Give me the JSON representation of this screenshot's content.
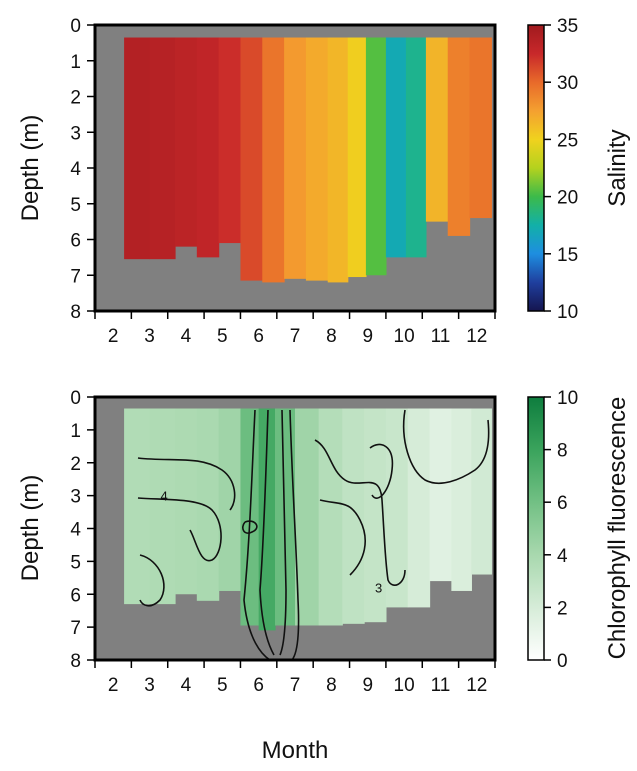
{
  "chart_data": [
    {
      "type": "heatmap",
      "panel": "top",
      "xlabel": "",
      "ylabel": "Depth (m)",
      "colorbar_label": "Salinity",
      "x_ticks": [
        "2",
        "3",
        "4",
        "5",
        "6",
        "7",
        "8",
        "9",
        "10",
        "11",
        "12"
      ],
      "y_ticks": [
        "0",
        "1",
        "2",
        "3",
        "4",
        "5",
        "6",
        "7",
        "8"
      ],
      "x_range": [
        1.5,
        12.5
      ],
      "y_range": [
        0,
        8
      ],
      "y_reversed": true,
      "colorbar_ticks": [
        "10",
        "15",
        "20",
        "25",
        "30",
        "35"
      ],
      "colorbar_range": [
        10,
        35
      ],
      "colormap": [
        "#15154f",
        "#1f3f9e",
        "#1e8ee0",
        "#12b0a8",
        "#3cba4a",
        "#b4d21e",
        "#f0d21e",
        "#f4a030",
        "#e86a2a",
        "#c8282a",
        "#a01a1e"
      ],
      "no_data_color": "#808080",
      "columns": [
        {
          "month": 2.6,
          "salinity": 33.8,
          "max_depth": 6.55
        },
        {
          "month": 3.4,
          "salinity": 33.6,
          "max_depth": 6.55
        },
        {
          "month": 4.0,
          "salinity": 33.3,
          "max_depth": 6.2
        },
        {
          "month": 4.6,
          "salinity": 33.0,
          "max_depth": 6.5
        },
        {
          "month": 5.2,
          "salinity": 32.3,
          "max_depth": 6.1
        },
        {
          "month": 5.8,
          "salinity": 31.2,
          "max_depth": 7.15
        },
        {
          "month": 6.4,
          "salinity": 29.5,
          "max_depth": 7.2
        },
        {
          "month": 7.0,
          "salinity": 27.8,
          "max_depth": 7.1
        },
        {
          "month": 7.6,
          "salinity": 27.0,
          "max_depth": 7.15
        },
        {
          "month": 8.2,
          "salinity": 26.4,
          "max_depth": 7.2
        },
        {
          "month": 8.7,
          "salinity": 25.2,
          "max_depth": 7.05
        },
        {
          "month": 9.2,
          "salinity": 20.5,
          "max_depth": 7.0
        },
        {
          "month": 9.8,
          "salinity": 17.0,
          "max_depth": 6.5
        },
        {
          "month": 10.3,
          "salinity": 18.2,
          "max_depth": 6.5
        },
        {
          "month": 10.9,
          "salinity": 26.5,
          "max_depth": 5.5
        },
        {
          "month": 11.5,
          "salinity": 29.0,
          "max_depth": 5.9
        },
        {
          "month": 12.1,
          "salinity": 29.5,
          "max_depth": 5.4
        }
      ]
    },
    {
      "type": "heatmap",
      "panel": "bottom",
      "xlabel": "Month",
      "ylabel": "Depth (m)",
      "colorbar_label": "Chlorophyll fluorescence",
      "x_ticks": [
        "2",
        "3",
        "4",
        "5",
        "6",
        "7",
        "8",
        "9",
        "10",
        "11",
        "12"
      ],
      "y_ticks": [
        "0",
        "1",
        "2",
        "3",
        "4",
        "5",
        "6",
        "7",
        "8"
      ],
      "x_range": [
        1.5,
        12.5
      ],
      "y_range": [
        0,
        8
      ],
      "y_reversed": true,
      "colorbar_ticks": [
        "0",
        "2",
        "4",
        "6",
        "8",
        "10"
      ],
      "colorbar_range": [
        0,
        10
      ],
      "colormap": [
        "#ffffff",
        "#d6ecd8",
        "#a8d8ae",
        "#72c084",
        "#3aa35c",
        "#0e7d3e"
      ],
      "no_data_color": "#808080",
      "contour_labels": [
        {
          "text": "4",
          "month": 3.4,
          "depth": 3.0
        },
        {
          "text": "3",
          "month": 9.3,
          "depth": 5.8
        }
      ],
      "columns": [
        {
          "month": 2.6,
          "chl": 3.6,
          "max_depth": 6.3
        },
        {
          "month": 3.4,
          "chl": 3.7,
          "max_depth": 6.3
        },
        {
          "month": 4.0,
          "chl": 3.8,
          "max_depth": 6.0
        },
        {
          "month": 4.6,
          "chl": 3.9,
          "max_depth": 6.2
        },
        {
          "month": 5.2,
          "chl": 4.3,
          "max_depth": 5.9
        },
        {
          "month": 5.8,
          "chl": 6.2,
          "max_depth": 6.95
        },
        {
          "month": 6.2,
          "chl": 7.6,
          "max_depth": 7.1
        },
        {
          "month": 6.7,
          "chl": 6.2,
          "max_depth": 6.95
        },
        {
          "month": 7.3,
          "chl": 4.3,
          "max_depth": 6.95
        },
        {
          "month": 8.0,
          "chl": 3.5,
          "max_depth": 6.95
        },
        {
          "month": 8.6,
          "chl": 3.0,
          "max_depth": 6.9
        },
        {
          "month": 9.2,
          "chl": 2.8,
          "max_depth": 6.85
        },
        {
          "month": 9.8,
          "chl": 2.6,
          "max_depth": 6.4
        },
        {
          "month": 10.4,
          "chl": 2.0,
          "max_depth": 6.4
        },
        {
          "month": 11.0,
          "chl": 1.5,
          "max_depth": 5.6
        },
        {
          "month": 11.6,
          "chl": 1.8,
          "max_depth": 5.9
        },
        {
          "month": 12.1,
          "chl": 2.2,
          "max_depth": 5.4
        }
      ]
    }
  ]
}
